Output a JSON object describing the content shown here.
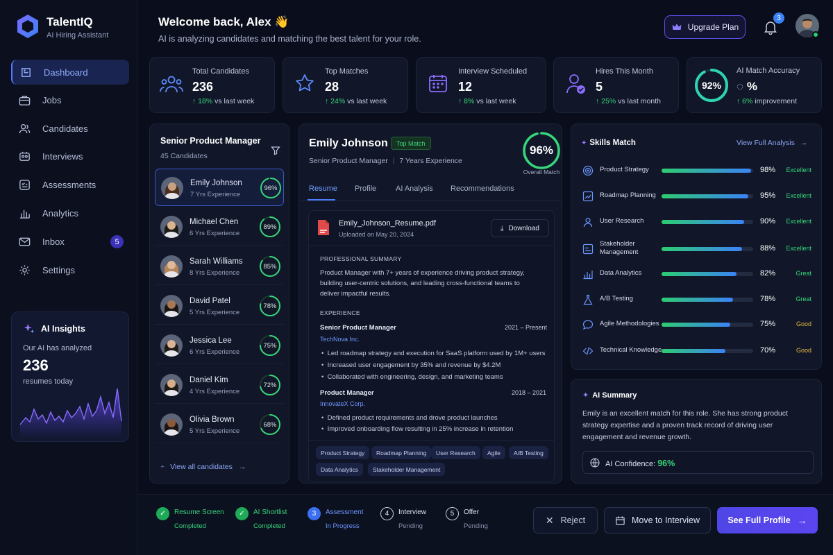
{
  "brand": {
    "name": "TalentIQ",
    "tagline": "AI Hiring Assistant"
  },
  "nav": [
    {
      "label": "Dashboard",
      "icon": "dashboard-icon",
      "active": true
    },
    {
      "label": "Jobs",
      "icon": "briefcase-icon"
    },
    {
      "label": "Candidates",
      "icon": "users-icon"
    },
    {
      "label": "Interviews",
      "icon": "interview-icon"
    },
    {
      "label": "Assessments",
      "icon": "assessment-icon"
    },
    {
      "label": "Analytics",
      "icon": "analytics-icon"
    },
    {
      "label": "Inbox",
      "icon": "mail-icon",
      "badge": "5"
    },
    {
      "label": "Settings",
      "icon": "gear-icon"
    }
  ],
  "insights": {
    "title": "AI Insights",
    "text": "Our AI has analyzed",
    "value": "236",
    "suffix": "resumes today"
  },
  "header": {
    "title": "Welcome back, Alex 👋",
    "subtitle": "AI is analyzing candidates and matching the best talent for your role.",
    "upgrade": "Upgrade Plan",
    "notifications": "3"
  },
  "stats": [
    {
      "label": "Total Candidates",
      "value": "236",
      "delta": "18%",
      "period": "vs last week",
      "icon": "team-icon"
    },
    {
      "label": "Top Matches",
      "value": "28",
      "delta": "24%",
      "period": "vs last week",
      "icon": "star-icon"
    },
    {
      "label": "Interview Scheduled",
      "value": "12",
      "delta": "8%",
      "period": "vs last week",
      "icon": "calendar-icon"
    },
    {
      "label": "Hires This Month",
      "value": "5",
      "delta": "25%",
      "period": "vs last month",
      "icon": "user-check-icon"
    },
    {
      "label": "AI Match Accuracy",
      "value": "92%",
      "value2": "%",
      "delta": "6%",
      "period": "improvement",
      "ring": 0.92
    }
  ],
  "job": {
    "title": "Senior Product Manager",
    "count": "45 Candidates",
    "view_all": "View all candidates"
  },
  "candidates": [
    {
      "name": "Emily Johnson",
      "exp": "7 Yrs Experience",
      "score": "96%",
      "pct": 0.96,
      "skin": "#c9a07f",
      "hair": "#4a2e1d"
    },
    {
      "name": "Michael Chen",
      "exp": "6 Yrs Experience",
      "score": "89%",
      "pct": 0.89,
      "skin": "#d8b48f",
      "hair": "#1d1a18"
    },
    {
      "name": "Sarah Williams",
      "exp": "8 Yrs Experience",
      "score": "85%",
      "pct": 0.85,
      "skin": "#e0b99a",
      "hair": "#b8845a"
    },
    {
      "name": "David Patel",
      "exp": "5 Yrs Experience",
      "score": "78%",
      "pct": 0.78,
      "skin": "#a87856",
      "hair": "#1a1512"
    },
    {
      "name": "Jessica Lee",
      "exp": "6 Yrs Experience",
      "score": "75%",
      "pct": 0.75,
      "skin": "#d9b495",
      "hair": "#201a17"
    },
    {
      "name": "Daniel Kim",
      "exp": "4 Yrs Experience",
      "score": "72%",
      "pct": 0.72,
      "skin": "#d6ae8a",
      "hair": "#1e1a16"
    },
    {
      "name": "Olivia Brown",
      "exp": "5 Yrs Experience",
      "score": "68%",
      "pct": 0.68,
      "skin": "#8a5a3c",
      "hair": "#1c1410"
    }
  ],
  "profile": {
    "name": "Emily Johnson",
    "badge": "Top Match",
    "role": "Senior Product Manager",
    "years": "7 Years Experience",
    "match": "96%",
    "match_label": "Overall Match",
    "match_pct": 0.96,
    "tabs": [
      "Resume",
      "Profile",
      "AI Analysis",
      "Recommendations"
    ],
    "file_name": "Emily_Johnson_Resume.pdf",
    "file_date": "Uploaded on May 20, 2024",
    "download": "Download",
    "summary_h": "PROFESSIONAL SUMMARY",
    "summary": "Product Manager with 7+ years of experience driving product strategy, building user-centric solutions, and leading cross-functional teams to deliver impactful results.",
    "exp_h": "EXPERIENCE",
    "jobs": [
      {
        "title": "Senior Product Manager",
        "dates": "2021 – Present",
        "company": "TechNova Inc.",
        "bullets": [
          "Led roadmap strategy and execution for SaaS platform used by 1M+ users",
          "Increased user engagement by 35% and revenue by $4.2M",
          "Collaborated with engineering, design, and marketing teams"
        ]
      },
      {
        "title": "Product Manager",
        "dates": "2018 – 2021",
        "company": "InnovateX Corp.",
        "bullets": [
          "Defined product requirements and drove product launches",
          "Improved onboarding flow resulting in 25% increase in retention"
        ]
      }
    ],
    "tags": [
      "Product Strategy",
      "Roadmap Planning",
      "User Research",
      "Agile",
      "A/B Testing",
      "Data Analytics",
      "Stakeholder Management"
    ]
  },
  "skills": {
    "title": "Skills Match",
    "link": "View Full Analysis",
    "items": [
      {
        "name": "Product Strategy",
        "pct": "98%",
        "value": 0.98,
        "rating": "Excellent",
        "icon": "target-icon"
      },
      {
        "name": "Roadmap Planning",
        "pct": "95%",
        "value": 0.95,
        "rating": "Excellent",
        "icon": "roadmap-icon"
      },
      {
        "name": "User Research",
        "pct": "90%",
        "value": 0.9,
        "rating": "Excellent",
        "icon": "user-icon"
      },
      {
        "name": "Stakeholder Management",
        "pct": "88%",
        "value": 0.88,
        "rating": "Excellent",
        "icon": "stakeholder-icon"
      },
      {
        "name": "Data Analytics",
        "pct": "82%",
        "value": 0.82,
        "rating": "Great",
        "icon": "chart-icon"
      },
      {
        "name": "A/B Testing",
        "pct": "78%",
        "value": 0.78,
        "rating": "Great",
        "icon": "flask-icon"
      },
      {
        "name": "Agile Methodologies",
        "pct": "75%",
        "value": 0.75,
        "rating": "Good",
        "icon": "chat-icon"
      },
      {
        "name": "Technical Knowledge",
        "pct": "70%",
        "value": 0.7,
        "rating": "Good",
        "icon": "code-icon"
      }
    ]
  },
  "summary": {
    "title": "AI Summary",
    "text": "Emily is an excellent match for this role. She has strong product strategy expertise and a proven track record of driving user engagement and revenue growth.",
    "confidence_label": "AI Confidence:",
    "confidence": "96%"
  },
  "steps": [
    {
      "name": "Resume Screen",
      "status": "Completed",
      "state": "done"
    },
    {
      "name": "AI Shortlist",
      "status": "Completed",
      "state": "done"
    },
    {
      "name": "Assessment",
      "status": "In Progress",
      "state": "active",
      "num": "3"
    },
    {
      "name": "Interview",
      "status": "Pending",
      "state": "pending",
      "num": "4"
    },
    {
      "name": "Offer",
      "status": "Pending",
      "state": "pending",
      "num": "5"
    }
  ],
  "actions": {
    "reject": "Reject",
    "move": "Move to Interview",
    "full": "See Full Profile"
  },
  "colors": {
    "accent": "#4f7dff",
    "green": "#37d67a",
    "purple": "#5b45f0",
    "excellent": "#37d67a",
    "great": "#37d67a",
    "good": "#e8b840"
  }
}
